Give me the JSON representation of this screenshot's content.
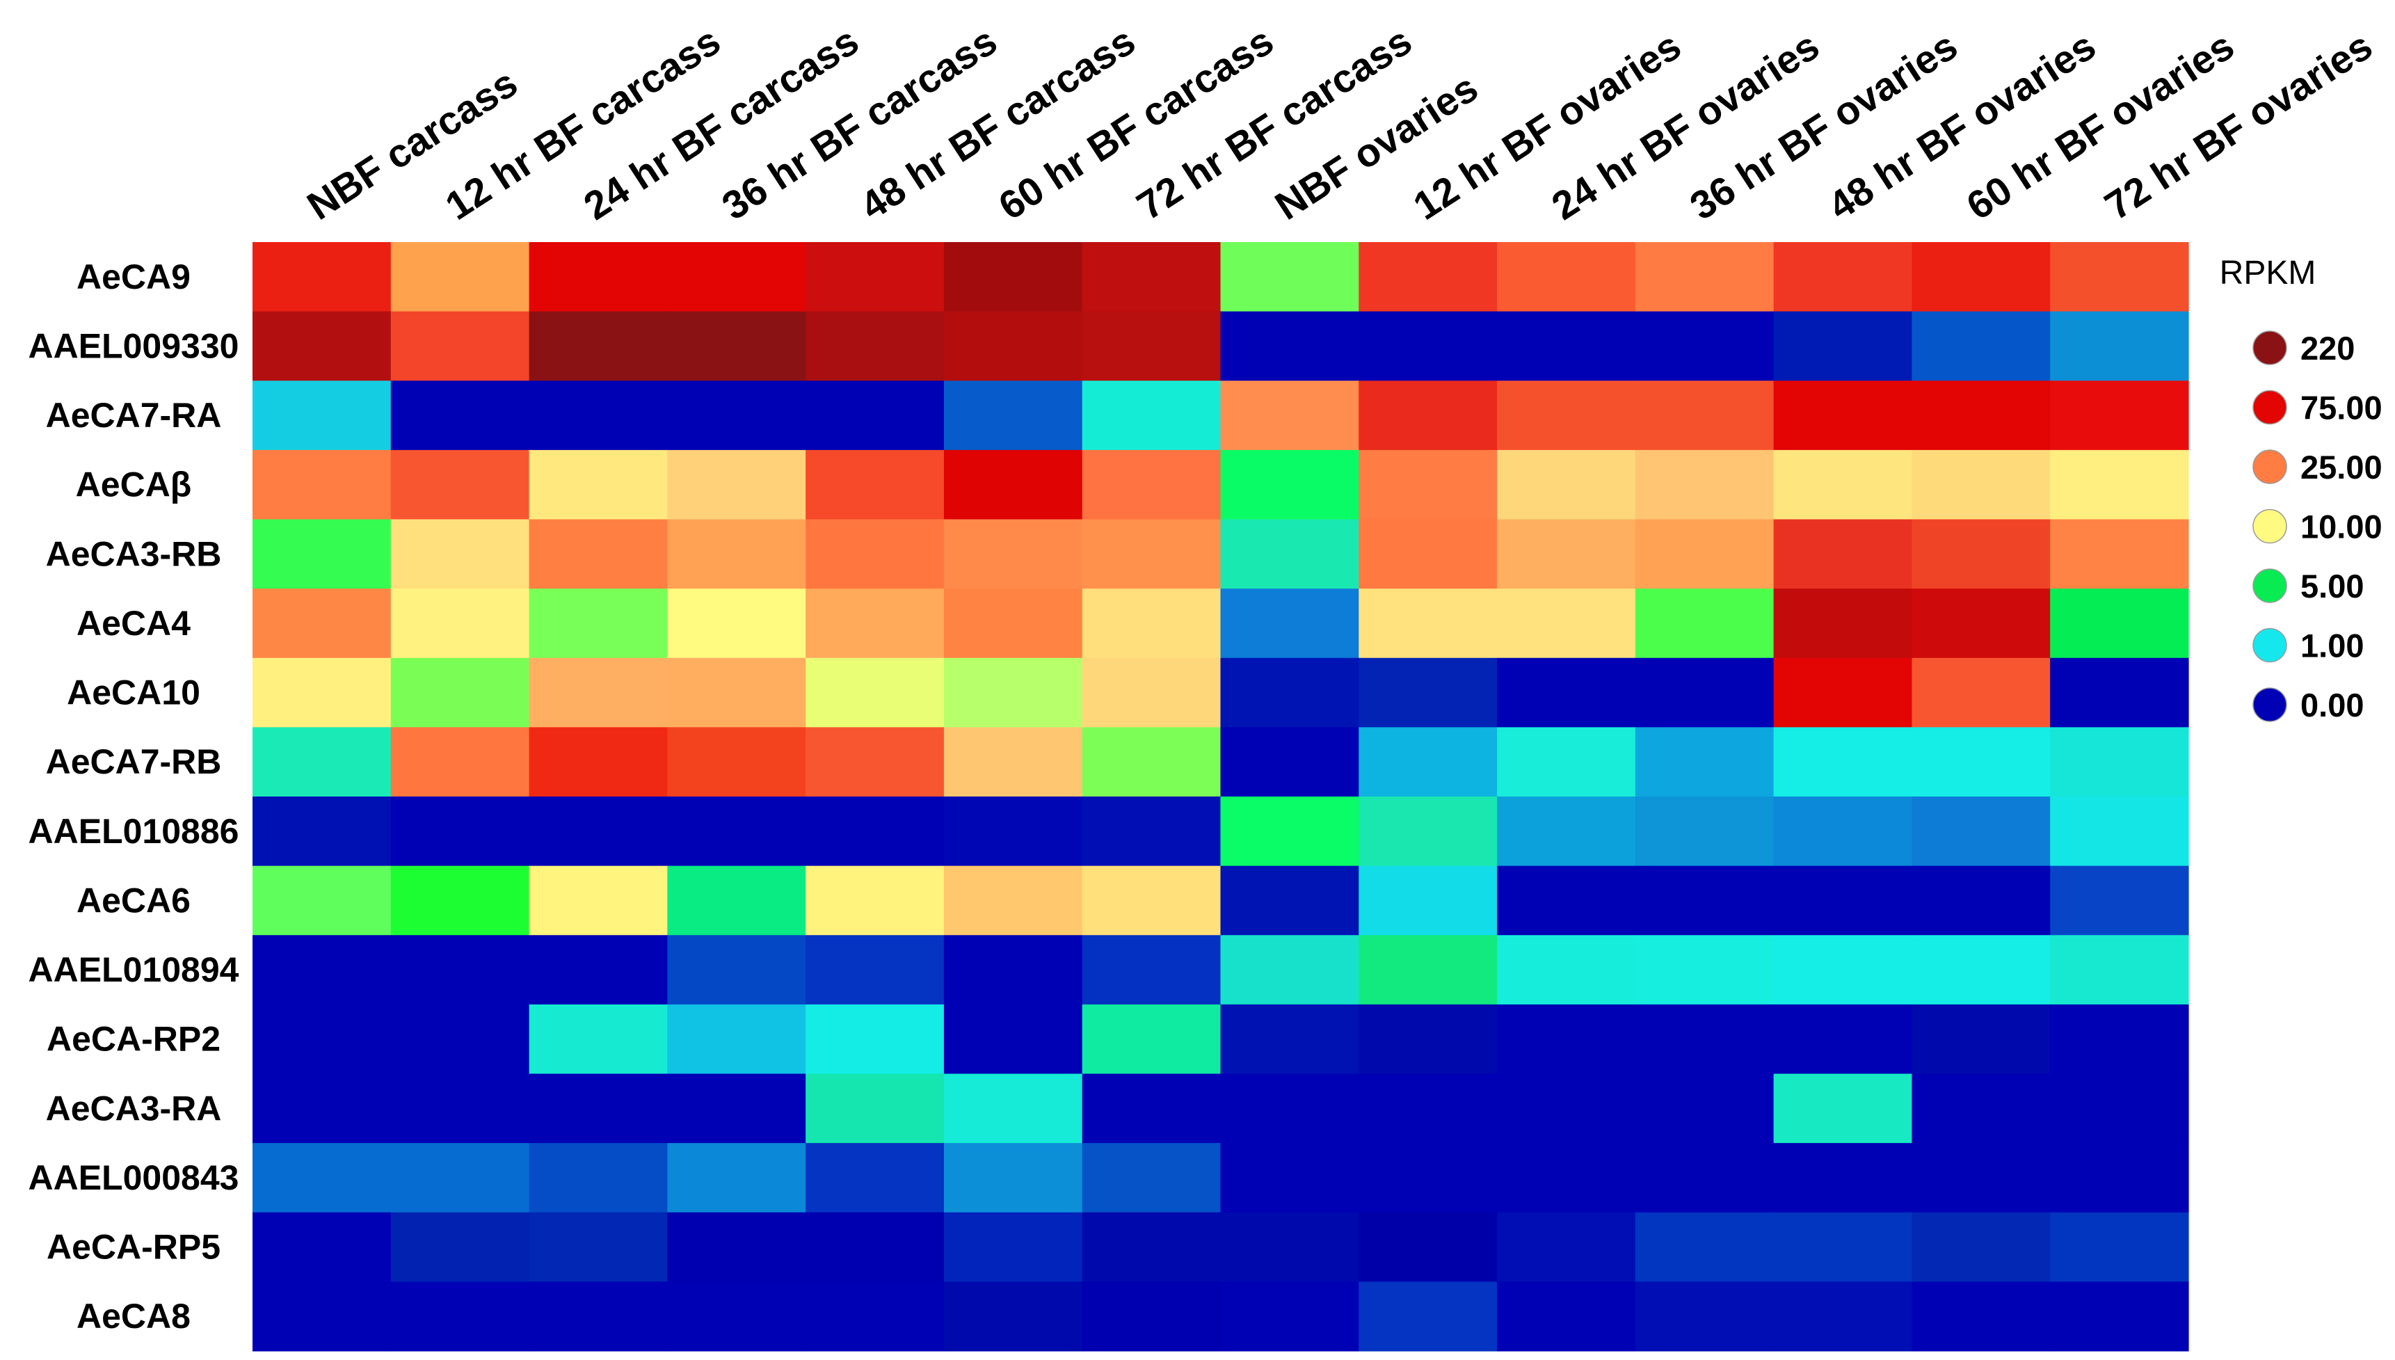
{
  "chart_data": {
    "type": "heatmap",
    "title": "",
    "xlabel": "",
    "ylabel": "",
    "columns": [
      "NBF carcass",
      "12 hr BF carcass",
      "24 hr BF carcass",
      "36 hr BF carcass",
      "48 hr BF carcass",
      "60 hr BF carcass",
      "72 hr BF carcass",
      "NBF ovaries",
      "12 hr BF ovaries",
      "24 hr BF ovaries",
      "36 hr BF ovaries",
      "48 hr BF ovaries",
      "60 hr BF ovaries",
      "72 hr BF ovaries"
    ],
    "rows": [
      "AeCA9",
      "AAEL009330",
      "AeCA7-RA",
      "AeCAβ",
      "AeCA3-RB",
      "AeCA4",
      "AeCA10",
      "AeCA7-RB",
      "AAEL010886",
      "AeCA6",
      "AAEL010894",
      "AeCA-RP2",
      "AeCA3-RA",
      "AAEL000843",
      "AeCA-RP5",
      "AeCA8"
    ],
    "value_label": "RPKM",
    "cell_colors": [
      [
        "#EC1F13",
        "#FFA24D",
        "#E30404",
        "#E30404",
        "#CC0E0E",
        "#A30C0C",
        "#BF0F0F",
        "#6FFD59",
        "#EF3723",
        "#FA5B30",
        "#FF7B44",
        "#EF3723",
        "#EC1F13",
        "#F4502C"
      ],
      [
        "#B21010",
        "#F4442A",
        "#8A1214",
        "#8A1214",
        "#A90F10",
        "#B40D0D",
        "#B80F0F",
        "#0000B4",
        "#0000B4",
        "#0000B4",
        "#0000B4",
        "#001BB4",
        "#0556C9",
        "#0D8FD6"
      ],
      [
        "#14CDE2",
        "#0000B4",
        "#0000B4",
        "#0000B4",
        "#0000B4",
        "#075BCA",
        "#15ECD6",
        "#FF8D4F",
        "#E92A1C",
        "#F6512D",
        "#F6512D",
        "#E30404",
        "#E30404",
        "#E90C0C"
      ],
      [
        "#FF7C42",
        "#F85631",
        "#FFE97F",
        "#FFD27A",
        "#F64A2A",
        "#DF0303",
        "#FF7241",
        "#09FC66",
        "#FF7C44",
        "#FFD77B",
        "#FFC572",
        "#FFE57E",
        "#FFDA7A",
        "#FFEE80"
      ],
      [
        "#35FC50",
        "#FFE07D",
        "#FF7F43",
        "#FFA254",
        "#FF773F",
        "#FF8A4A",
        "#FF914D",
        "#1AE8B1",
        "#FF7941",
        "#FFAF5F",
        "#FFA254",
        "#E93222",
        "#F04427",
        "#FF8344"
      ],
      [
        "#FF8746",
        "#FFF280",
        "#78FF58",
        "#FFFA80",
        "#FFA95B",
        "#FF8343",
        "#FFDE7C",
        "#0D7DD7",
        "#FFE27D",
        "#FFE27D",
        "#4BFE4B",
        "#C40B0B",
        "#CE0A0A",
        "#05ED55"
      ],
      [
        "#FFF080",
        "#7AFE55",
        "#FFAF62",
        "#FFAE60",
        "#E9FE75",
        "#B7FF6B",
        "#FFD77B",
        "#0014B4",
        "#0223B3",
        "#0000B4",
        "#0000B4",
        "#E30404",
        "#F85631",
        "#0000B4"
      ],
      [
        "#1AEBB6",
        "#FF773F",
        "#F02915",
        "#F2431E",
        "#F85631",
        "#FFC672",
        "#7DFE57",
        "#0000B4",
        "#0DB4E1",
        "#17EDD8",
        "#0DA6DF",
        "#15EEE6",
        "#15EEE6",
        "#15E6D8"
      ],
      [
        "#0011B4",
        "#0000B4",
        "#0000B4",
        "#0000B4",
        "#0000B4",
        "#0006B4",
        "#000EB4",
        "#0AFC66",
        "#1AE6AF",
        "#0DA1DB",
        "#0D95D8",
        "#0C89D8",
        "#0C7CD6",
        "#14E6E6"
      ],
      [
        "#5FFE5C",
        "#1CFE32",
        "#FFF47E",
        "#09EB83",
        "#FFF37E",
        "#FFC86F",
        "#FFE07B",
        "#0014B4",
        "#12DCE8",
        "#0000B4",
        "#0000B4",
        "#0000B4",
        "#0000B4",
        "#0845C6"
      ],
      [
        "#0000B4",
        "#0000B4",
        "#0000B4",
        "#0548C6",
        "#0434C1",
        "#0000B4",
        "#0431C2",
        "#17E1CA",
        "#12EA80",
        "#16EEDB",
        "#16EEE0",
        "#15EEE6",
        "#15EEE6",
        "#17E9D0"
      ],
      [
        "#0000B4",
        "#0000B4",
        "#16EBD2",
        "#10C2E4",
        "#14EDE6",
        "#0000B4",
        "#0FEBA0",
        "#0012B2",
        "#000AAC",
        "#0000B4",
        "#0000B4",
        "#0000B4",
        "#000AAC",
        "#0000B4"
      ],
      [
        "#0000B4",
        "#0000B4",
        "#0000B4",
        "#0000B4",
        "#15E6AF",
        "#15EBD6",
        "#0000B4",
        "#0000B4",
        "#0000B4",
        "#0000B4",
        "#0000B4",
        "#17E9C3",
        "#0000B4",
        "#0000B4"
      ],
      [
        "#076CD2",
        "#076CD2",
        "#044DC6",
        "#0B89D8",
        "#0434C1",
        "#0D8FD8",
        "#0653C8",
        "#0000B4",
        "#0000B4",
        "#0000B4",
        "#0000B4",
        "#0000B4",
        "#0000B4",
        "#0000B4"
      ],
      [
        "#0000B4",
        "#0222B2",
        "#0227B4",
        "#0000B0",
        "#0000B0",
        "#0224BA",
        "#0009AC",
        "#0009AC",
        "#0000A8",
        "#000EB4",
        "#0235C0",
        "#0235C0",
        "#0228B4",
        "#0235C0"
      ],
      [
        "#0000B4",
        "#0000B4",
        "#0000B4",
        "#0000B4",
        "#0000B4",
        "#0009AC",
        "#0000B0",
        "#0000B4",
        "#0434C1",
        "#0000B4",
        "#000EB4",
        "#000EB4",
        "#0000B4",
        "#0000B4"
      ]
    ],
    "legend": {
      "title": "RPKM",
      "position": "right",
      "entries": [
        {
          "label": "220",
          "color": "#8A1214"
        },
        {
          "label": "75.00",
          "color": "#E30404"
        },
        {
          "label": "25.00",
          "color": "#FF7C42"
        },
        {
          "label": "10.00",
          "color": "#FFFA80"
        },
        {
          "label": "5.00",
          "color": "#09EB52"
        },
        {
          "label": "1.00",
          "color": "#14E8EC"
        },
        {
          "label": "0.00",
          "color": "#0000B4"
        }
      ]
    }
  }
}
